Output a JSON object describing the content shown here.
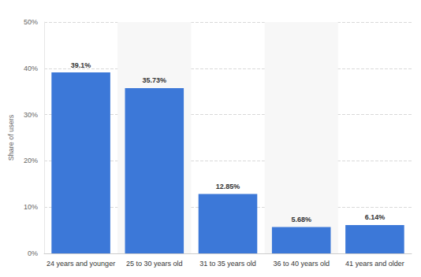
{
  "chart_data": {
    "type": "bar",
    "y_label": "Share of users",
    "categories": [
      "24 years and younger",
      "25 to 30 years old",
      "31 to 35 years old",
      "36 to 40 years old",
      "41 years and older"
    ],
    "values": [
      39.1,
      35.73,
      12.85,
      5.68,
      6.14
    ],
    "value_labels": [
      "39.1%",
      "35.73%",
      "12.85%",
      "5.68%",
      "6.14%"
    ],
    "color": "#3c78d8",
    "ylim": [
      0,
      50
    ],
    "yticks": [
      {
        "value": 0,
        "label": "0%"
      },
      {
        "value": 10,
        "label": "10%"
      },
      {
        "value": 20,
        "label": "20%"
      },
      {
        "value": 30,
        "label": "30%"
      },
      {
        "value": 40,
        "label": "40%"
      },
      {
        "value": 50,
        "label": "50%"
      }
    ],
    "grid": true,
    "data_labels": true
  }
}
